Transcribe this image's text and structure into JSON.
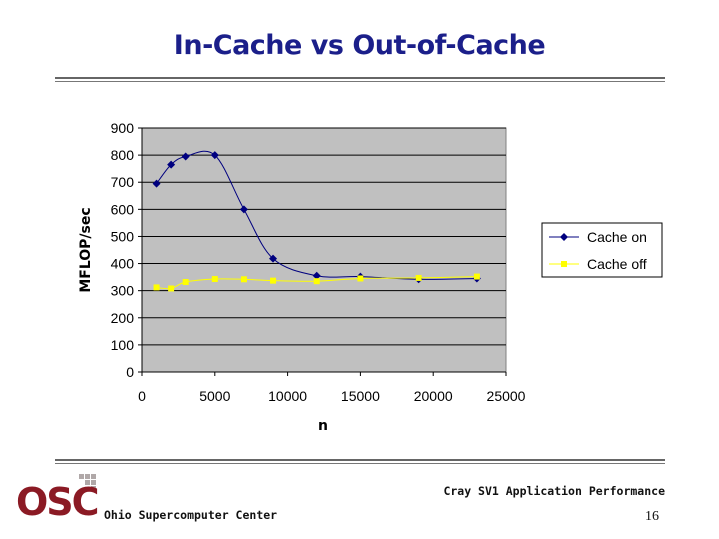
{
  "slide": {
    "title": "In-Cache vs Out-of-Cache",
    "footer_right": "Cray SV1 Application Performance",
    "footer_left": "Ohio Supercomputer Center",
    "page_number": "16",
    "logo_text": "OSC"
  },
  "colors": {
    "title": "#1b1f8a",
    "plot_bg": "#c0c0c0",
    "cache_on": "#00007f",
    "cache_off": "#ffff00",
    "logo": "#8b1a24"
  },
  "chart_data": {
    "type": "scatter",
    "title": "",
    "xlabel": "n",
    "ylabel": "MFLOP/sec",
    "xlim": [
      0,
      25000
    ],
    "ylim": [
      0,
      900
    ],
    "xticks": [
      0,
      5000,
      10000,
      15000,
      20000,
      25000
    ],
    "yticks": [
      0,
      100,
      200,
      300,
      400,
      500,
      600,
      700,
      800,
      900
    ],
    "grid": "horizontal",
    "legend_position": "right",
    "smoothed_lines": true,
    "series": [
      {
        "name": "Cache on",
        "color": "#00007f",
        "marker": "diamond",
        "x": [
          1000,
          2000,
          3000,
          5000,
          7000,
          9000,
          12000,
          15000,
          19000,
          23000
        ],
        "y": [
          695,
          765,
          795,
          800,
          600,
          418,
          355,
          352,
          342,
          345
        ]
      },
      {
        "name": "Cache off",
        "color": "#ffff00",
        "marker": "square",
        "x": [
          1000,
          2000,
          3000,
          5000,
          7000,
          9000,
          12000,
          15000,
          19000,
          23000
        ],
        "y": [
          312,
          308,
          332,
          343,
          342,
          337,
          335,
          345,
          347,
          352
        ]
      }
    ]
  }
}
